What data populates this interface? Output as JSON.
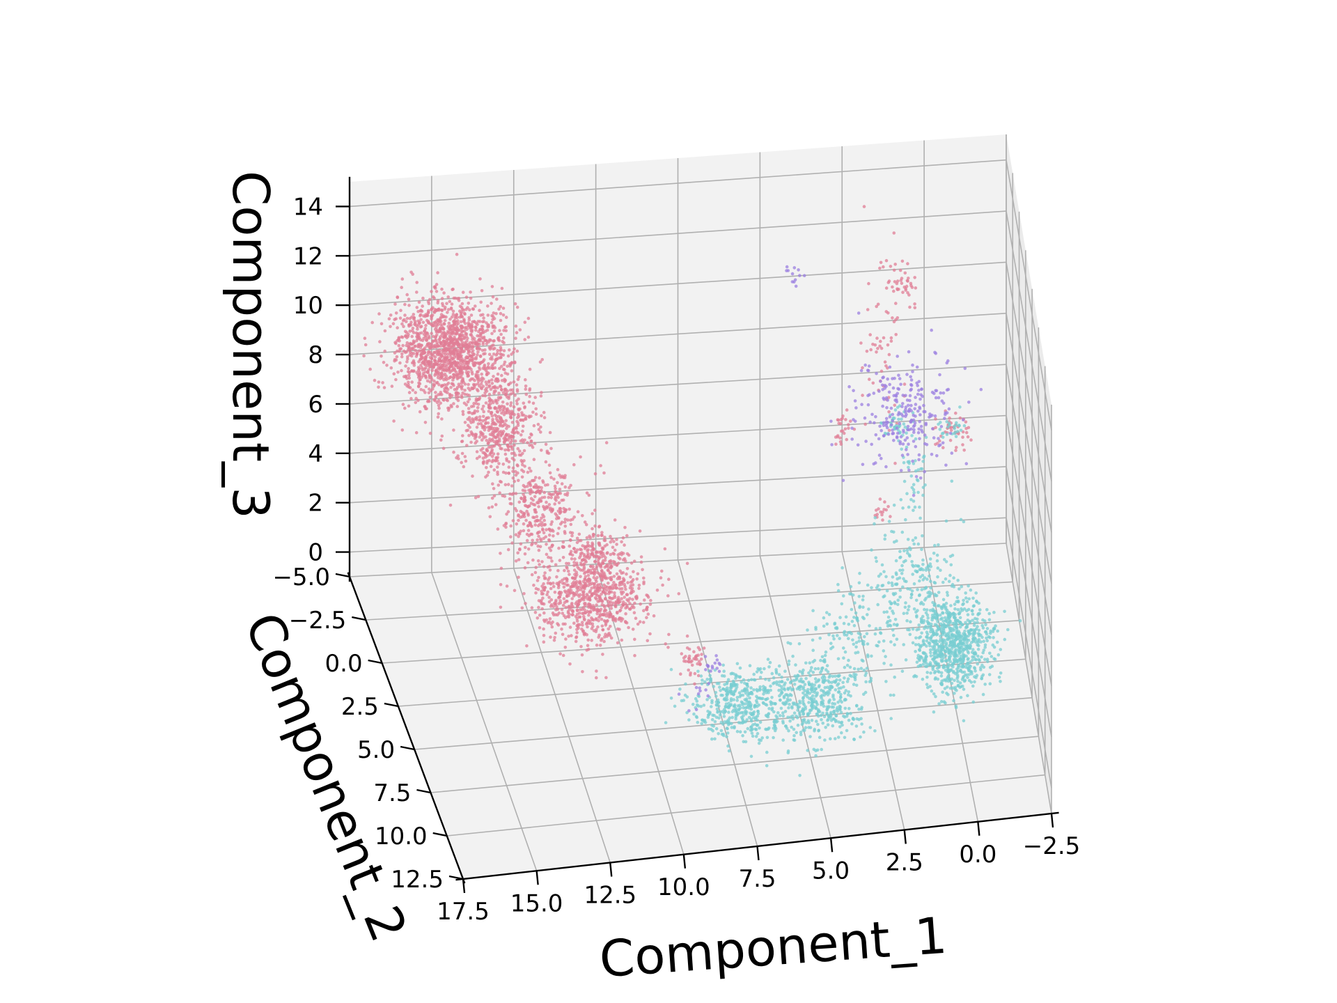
{
  "chart_data": {
    "type": "scatter",
    "projection": "3d",
    "title": "",
    "xlabel": "Component_1",
    "ylabel": "Component_2",
    "zlabel": "Component_3",
    "xlim": [
      -2.5,
      17.5
    ],
    "ylim": [
      -5.0,
      12.5
    ],
    "zlim": [
      -1.0,
      15.0
    ],
    "x_ticks": [
      17.5,
      15.0,
      12.5,
      10.0,
      7.5,
      5.0,
      2.5,
      0.0,
      -2.5
    ],
    "x_tick_labels": [
      "17.5",
      "15.0",
      "12.5",
      "10.0",
      "7.5",
      "5.0",
      "2.5",
      "0.0",
      "−2.5"
    ],
    "y_ticks": [
      -5.0,
      -2.5,
      0.0,
      2.5,
      5.0,
      7.5,
      10.0,
      12.5
    ],
    "y_tick_labels": [
      "−5.0",
      "−2.5",
      "0.0",
      "2.5",
      "5.0",
      "7.5",
      "10.0",
      "12.5"
    ],
    "z_ticks": [
      0,
      2,
      4,
      6,
      8,
      10,
      12,
      14
    ],
    "z_tick_labels": [
      "0",
      "2",
      "4",
      "6",
      "8",
      "10",
      "12",
      "14"
    ],
    "grid": true,
    "legend": "none",
    "colors": {
      "pink": "#E07E95",
      "cyan": "#78CDD1",
      "purple": "#9B7FE0",
      "pane": "#F2F2F2",
      "grid": "#B0B0B0",
      "axis": "#000000"
    },
    "series": [
      {
        "color": "#E07E95",
        "clusters": [
          {
            "x": 15.0,
            "y": -2.0,
            "z": 10.0,
            "sx": 0.9,
            "sy": 0.9,
            "sz": 0.9,
            "n": 1400
          },
          {
            "x": 13.7,
            "y": -1.0,
            "z": 7.5,
            "sx": 0.6,
            "sy": 0.8,
            "sz": 1.0,
            "n": 500
          },
          {
            "x": 12.6,
            "y": 0.5,
            "z": 5.0,
            "sx": 0.6,
            "sy": 0.8,
            "sz": 0.9,
            "n": 350
          },
          {
            "x": 11.4,
            "y": 2.8,
            "z": 3.0,
            "sx": 0.9,
            "sy": 0.8,
            "sz": 0.8,
            "n": 800
          },
          {
            "x": 11.0,
            "y": 1.5,
            "z": 4.0,
            "sx": 0.4,
            "sy": 0.4,
            "sz": 0.5,
            "n": 120
          },
          {
            "x": 8.4,
            "y": 4.3,
            "z": 1.2,
            "sx": 0.2,
            "sy": 0.2,
            "sz": 0.3,
            "n": 40
          },
          {
            "x": 1.5,
            "y": -2.5,
            "z": 9.0,
            "sx": 0.3,
            "sy": 0.4,
            "sz": 2.0,
            "n": 60
          },
          {
            "x": 0.8,
            "y": -3.3,
            "z": 10.5,
            "sx": 0.3,
            "sy": 0.3,
            "sz": 0.4,
            "n": 35
          },
          {
            "x": 2.8,
            "y": -1.5,
            "z": 6.0,
            "sx": 0.2,
            "sy": 0.3,
            "sz": 0.3,
            "n": 25
          },
          {
            "x": -0.5,
            "y": -1.0,
            "z": 6.0,
            "sx": 0.4,
            "sy": 0.3,
            "sz": 0.3,
            "n": 45
          },
          {
            "x": 1.8,
            "y": -0.2,
            "z": 3.5,
            "sx": 0.15,
            "sy": 0.15,
            "sz": 0.2,
            "n": 15
          }
        ]
      },
      {
        "color": "#78CDD1",
        "clusters": [
          {
            "x": -0.2,
            "y": 2.5,
            "z": -0.2,
            "sx": 0.6,
            "sy": 0.9,
            "sz": 0.8,
            "n": 800
          },
          {
            "x": 1.0,
            "y": 1.5,
            "z": 1.5,
            "sx": 0.7,
            "sy": 1.0,
            "sz": 1.0,
            "n": 220
          },
          {
            "x": 4.5,
            "y": 5.5,
            "z": 0.0,
            "sx": 0.8,
            "sy": 0.9,
            "sz": 0.6,
            "n": 450
          },
          {
            "x": 7.0,
            "y": 5.5,
            "z": 0.0,
            "sx": 0.8,
            "sy": 0.8,
            "sz": 0.6,
            "n": 450
          },
          {
            "x": 3.0,
            "y": 3.0,
            "z": 1.0,
            "sx": 0.6,
            "sy": 0.8,
            "sz": 0.8,
            "n": 120
          },
          {
            "x": 1.2,
            "y": -1.5,
            "z": 6.0,
            "sx": 0.25,
            "sy": 0.25,
            "sz": 0.3,
            "n": 40
          },
          {
            "x": -0.5,
            "y": -1.0,
            "z": 6.0,
            "sx": 0.2,
            "sy": 0.2,
            "sz": 0.2,
            "n": 25
          },
          {
            "x": 0.8,
            "y": 0.0,
            "z": 5.0,
            "sx": 0.3,
            "sy": 0.3,
            "sz": 1.2,
            "n": 40
          }
        ]
      },
      {
        "color": "#9B7FE0",
        "clusters": [
          {
            "x": 1.0,
            "y": -1.5,
            "z": 6.5,
            "sx": 0.8,
            "sy": 0.9,
            "sz": 0.9,
            "n": 250
          },
          {
            "x": 4.0,
            "y": -5.0,
            "z": 10.0,
            "sx": 0.15,
            "sy": 0.15,
            "sz": 0.2,
            "n": 12
          },
          {
            "x": 7.8,
            "y": 4.5,
            "z": 1.0,
            "sx": 0.2,
            "sy": 0.2,
            "sz": 0.2,
            "n": 15
          },
          {
            "x": 8.5,
            "y": 5.5,
            "z": 0.5,
            "sx": 0.3,
            "sy": 0.3,
            "sz": 0.3,
            "n": 10
          }
        ]
      }
    ]
  }
}
